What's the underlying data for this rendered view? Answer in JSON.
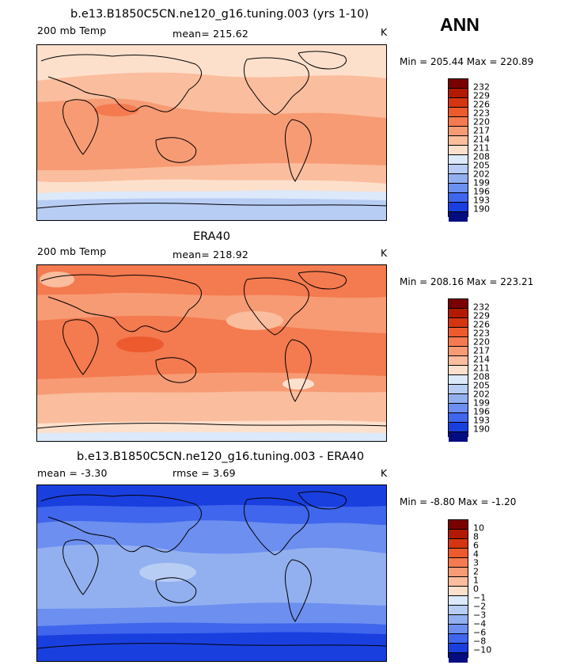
{
  "season": "ANN",
  "panels": [
    {
      "title": "b.e13.B1850C5CN.ne120_g16.tuning.003 (yrs 1-10)",
      "left_label": "200 mb Temp",
      "center_label": "mean= 215.62",
      "right_label": "K",
      "minmax": "Min = 205.44 Max = 220.89",
      "levels": [
        "232",
        "229",
        "226",
        "223",
        "220",
        "217",
        "214",
        "211",
        "208",
        "205",
        "202",
        "199",
        "196",
        "193",
        "190"
      ]
    },
    {
      "title": "ERA40",
      "left_label": "200 mb Temp",
      "center_label": "mean= 218.92",
      "right_label": "K",
      "minmax": "Min = 208.16 Max = 223.21",
      "levels": [
        "232",
        "229",
        "226",
        "223",
        "220",
        "217",
        "214",
        "211",
        "208",
        "205",
        "202",
        "199",
        "196",
        "193",
        "190"
      ]
    },
    {
      "title": "b.e13.B1850C5CN.ne120_g16.tuning.003 - ERA40",
      "left_label": "mean =   -3.30",
      "center_label": "rmse =    3.69",
      "right_label": "K",
      "minmax": "Min =  -8.80 Max =  -1.20",
      "levels": [
        "10",
        "8",
        "6",
        "4",
        "3",
        "2",
        "1",
        "0",
        "−1",
        "−2",
        "−3",
        "−4",
        "−6",
        "−8",
        "−10"
      ]
    }
  ],
  "colorbar_colors": [
    "#7a0000",
    "#b21a00",
    "#d63512",
    "#ec5a2e",
    "#f47a4f",
    "#f79b74",
    "#fabd9d",
    "#fde0cc",
    "#dce9fb",
    "#b8cdf4",
    "#92b0ef",
    "#6c8ff0",
    "#3f66ec",
    "#1a3fdf",
    "#0a1fb0",
    "#050c80"
  ],
  "maps": {
    "map1": {
      "colors": [
        "#fde0cc",
        "#fabd9d",
        "#f79b74",
        "#f47a4f",
        "#dce9fb",
        "#b8cdf4"
      ]
    },
    "map2": {
      "colors": [
        "#fde0cc",
        "#fabd9d",
        "#f79b74",
        "#f47a4f",
        "#ec5a2e",
        "#dce9fb"
      ]
    },
    "map3": {
      "colors": [
        "#b8cdf4",
        "#92b0ef",
        "#6c8ff0",
        "#3f66ec",
        "#1a3fdf",
        "#dce9fb"
      ]
    }
  }
}
